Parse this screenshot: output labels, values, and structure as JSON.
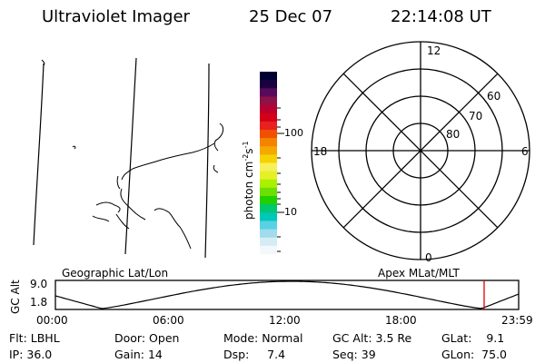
{
  "header": {
    "instrument": "Ultraviolet Imager",
    "date": "25 Dec 07",
    "time": "22:14:08 UT"
  },
  "colorbar": {
    "unit_label": "photon cm",
    "unit_sup1": "-2",
    "unit_mid": "s",
    "unit_sup2": "-1",
    "tick_100": "100",
    "tick_10": "10",
    "colors": [
      "#000033",
      "#1a0040",
      "#5a0a5a",
      "#8c1248",
      "#b80030",
      "#d40018",
      "#e82020",
      "#f05000",
      "#f38400",
      "#f4a800",
      "#f6d200",
      "#f8f05a",
      "#e4f028",
      "#aaf000",
      "#6ce000",
      "#20d000",
      "#00c870",
      "#00c8b8",
      "#5ad0e6",
      "#a0dcec",
      "#d6ecf4",
      "#f4f8fc"
    ]
  },
  "polar": {
    "mlt_top": "12",
    "mlt_left": "18",
    "mlt_right": "6",
    "mlt_bottom": "0",
    "lat_60": "60",
    "lat_70": "70",
    "lat_80": "80"
  },
  "timeline": {
    "left_title": "Geographic Lat/Lon",
    "right_title": "Apex MLat/MLT",
    "y_axis_label": "GC Alt",
    "y_max": "9.0",
    "y_min": "1.8",
    "x_ticks": [
      "00:00",
      "06:00",
      "12:00",
      "18:00",
      "23:59"
    ],
    "marker_color": "#dd0000"
  },
  "info": {
    "flt_label": "Flt:",
    "flt_value": "LBHL",
    "ip_label": "IP:",
    "ip_value": "36.0",
    "door_label": "Door:",
    "door_value": "Open",
    "gain_label": "Gain:",
    "gain_value": "14",
    "mode_label": "Mode:",
    "mode_value": "Normal",
    "dsp_label": "Dsp:",
    "dsp_value": "7.4",
    "gcalt_label": "GC Alt:",
    "gcalt_value": "3.5 Re",
    "seq_label": "Seq:",
    "seq_value": "39",
    "glat_label": "GLat:",
    "glat_value": "9.1",
    "glon_label": "GLon:",
    "glon_value": "75.0"
  }
}
